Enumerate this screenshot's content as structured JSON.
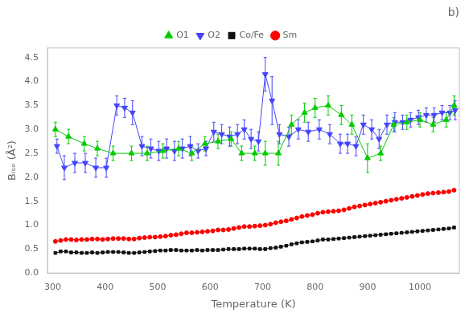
{
  "chart_data": {
    "type": "line",
    "title": "b)",
    "x_label": "Temperature (K)",
    "y_label": "Bᵢₛₒ (Å²)",
    "xlim": [
      290,
      1075
    ],
    "ylim": [
      0.0,
      4.7
    ],
    "xticks": [
      300,
      400,
      500,
      600,
      700,
      800,
      900,
      1000
    ],
    "yticks": [
      {
        "value": 0.0,
        "label": "0.0"
      },
      0.5,
      {
        "value": 1.0,
        "label": "1.0"
      },
      1.5,
      {
        "value": 2.0,
        "label": "2.0"
      },
      2.5,
      {
        "value": 3.0,
        "label": "3.0"
      },
      3.5,
      {
        "value": 4.0,
        "label": "4.0"
      },
      4.5
    ],
    "grid": false,
    "legend": "top",
    "series": [
      {
        "name": "O1",
        "color": "#00cc00",
        "marker": "triangle-up",
        "line_style": "solid",
        "x": [
          305,
          330,
          360,
          385,
          415,
          450,
          480,
          510,
          540,
          565,
          590,
          615,
          640,
          660,
          685,
          705,
          730,
          755,
          780,
          800,
          825,
          850,
          870,
          900,
          925,
          950,
          975,
          1000,
          1025,
          1050,
          1065
        ],
        "values": [
          3.0,
          2.85,
          2.7,
          2.6,
          2.5,
          2.5,
          2.5,
          2.55,
          2.6,
          2.5,
          2.7,
          2.75,
          2.8,
          2.5,
          2.5,
          2.5,
          2.5,
          3.1,
          3.35,
          3.45,
          3.5,
          3.3,
          3.1,
          2.4,
          2.5,
          3.1,
          3.15,
          3.2,
          3.1,
          3.2,
          3.5
        ],
        "yerr": [
          0.15,
          0.15,
          0.15,
          0.15,
          0.15,
          0.15,
          0.15,
          0.15,
          0.15,
          0.15,
          0.15,
          0.15,
          0.15,
          0.15,
          0.15,
          0.25,
          0.25,
          0.2,
          0.2,
          0.2,
          0.2,
          0.2,
          0.2,
          0.3,
          0.15,
          0.15,
          0.15,
          0.15,
          0.15,
          0.15,
          0.2
        ]
      },
      {
        "name": "O2",
        "color": "#4444ff",
        "marker": "triangle-down",
        "line_style": "solid",
        "x": [
          308,
          322,
          342,
          362,
          382,
          402,
          422,
          437,
          452,
          470,
          487,
          502,
          517,
          532,
          547,
          562,
          577,
          592,
          607,
          622,
          637,
          652,
          665,
          678,
          692,
          705,
          718,
          732,
          750,
          768,
          787,
          808,
          828,
          848,
          862,
          878,
          892,
          908,
          922,
          937,
          952,
          967,
          982,
          997,
          1012,
          1027,
          1042,
          1057,
          1067
        ],
        "values": [
          2.65,
          2.2,
          2.3,
          2.3,
          2.2,
          2.2,
          3.5,
          3.45,
          3.35,
          2.65,
          2.6,
          2.55,
          2.6,
          2.55,
          2.6,
          2.65,
          2.55,
          2.6,
          2.95,
          2.9,
          2.85,
          2.9,
          3.0,
          2.8,
          2.75,
          4.15,
          3.6,
          2.9,
          2.85,
          3.0,
          2.95,
          3.0,
          2.9,
          2.7,
          2.7,
          2.65,
          3.1,
          3.0,
          2.8,
          3.1,
          3.15,
          3.15,
          3.2,
          3.25,
          3.3,
          3.3,
          3.35,
          3.35,
          3.4
        ],
        "yerr": [
          0.15,
          0.25,
          0.2,
          0.2,
          0.2,
          0.2,
          0.2,
          0.2,
          0.25,
          0.2,
          0.2,
          0.2,
          0.2,
          0.2,
          0.2,
          0.2,
          0.15,
          0.15,
          0.2,
          0.2,
          0.2,
          0.2,
          0.2,
          0.2,
          0.2,
          0.35,
          0.5,
          0.2,
          0.2,
          0.2,
          0.2,
          0.2,
          0.2,
          0.2,
          0.2,
          0.2,
          0.2,
          0.2,
          0.2,
          0.2,
          0.2,
          0.15,
          0.15,
          0.15,
          0.15,
          0.15,
          0.15,
          0.15,
          0.2
        ]
      },
      {
        "name": "Co/Fe",
        "color": "#111111",
        "marker": "square",
        "line_style": "solid",
        "x": [
          305,
          315,
          325,
          335,
          345,
          355,
          365,
          375,
          385,
          395,
          405,
          415,
          425,
          435,
          445,
          455,
          465,
          475,
          485,
          495,
          505,
          515,
          525,
          535,
          545,
          555,
          565,
          575,
          585,
          595,
          605,
          615,
          625,
          635,
          645,
          655,
          665,
          675,
          685,
          695,
          705,
          715,
          725,
          735,
          745,
          755,
          765,
          775,
          785,
          795,
          805,
          815,
          825,
          835,
          845,
          855,
          865,
          875,
          885,
          895,
          905,
          915,
          925,
          935,
          945,
          955,
          965,
          975,
          985,
          995,
          1005,
          1015,
          1025,
          1035,
          1045,
          1055,
          1065
        ],
        "values": [
          0.42,
          0.45,
          0.45,
          0.43,
          0.43,
          0.42,
          0.42,
          0.43,
          0.42,
          0.43,
          0.44,
          0.44,
          0.44,
          0.43,
          0.42,
          0.42,
          0.43,
          0.44,
          0.45,
          0.46,
          0.47,
          0.47,
          0.48,
          0.48,
          0.47,
          0.47,
          0.47,
          0.48,
          0.47,
          0.48,
          0.48,
          0.48,
          0.49,
          0.5,
          0.5,
          0.5,
          0.51,
          0.51,
          0.51,
          0.5,
          0.5,
          0.52,
          0.53,
          0.55,
          0.57,
          0.6,
          0.62,
          0.64,
          0.65,
          0.66,
          0.68,
          0.7,
          0.7,
          0.71,
          0.72,
          0.73,
          0.74,
          0.75,
          0.76,
          0.77,
          0.78,
          0.79,
          0.8,
          0.81,
          0.82,
          0.83,
          0.84,
          0.85,
          0.86,
          0.87,
          0.88,
          0.89,
          0.9,
          0.91,
          0.92,
          0.93,
          0.95
        ]
      },
      {
        "name": "Sm",
        "color": "#ff0000",
        "marker": "circle",
        "line_style": "solid",
        "x": [
          305,
          315,
          325,
          335,
          345,
          355,
          365,
          375,
          385,
          395,
          405,
          415,
          425,
          435,
          445,
          455,
          465,
          475,
          485,
          495,
          505,
          515,
          525,
          535,
          545,
          555,
          565,
          575,
          585,
          595,
          605,
          615,
          625,
          635,
          645,
          655,
          665,
          675,
          685,
          695,
          705,
          715,
          725,
          735,
          745,
          755,
          765,
          775,
          785,
          795,
          805,
          815,
          825,
          835,
          845,
          855,
          865,
          875,
          885,
          895,
          905,
          915,
          925,
          935,
          945,
          955,
          965,
          975,
          985,
          995,
          1005,
          1015,
          1025,
          1035,
          1045,
          1055,
          1065
        ],
        "values": [
          0.66,
          0.68,
          0.7,
          0.7,
          0.69,
          0.7,
          0.7,
          0.71,
          0.71,
          0.7,
          0.71,
          0.72,
          0.72,
          0.72,
          0.71,
          0.71,
          0.73,
          0.74,
          0.75,
          0.75,
          0.76,
          0.77,
          0.79,
          0.8,
          0.82,
          0.84,
          0.84,
          0.85,
          0.86,
          0.87,
          0.88,
          0.9,
          0.9,
          0.91,
          0.93,
          0.95,
          0.97,
          0.97,
          0.98,
          0.99,
          1.0,
          1.02,
          1.05,
          1.07,
          1.09,
          1.12,
          1.15,
          1.18,
          1.2,
          1.22,
          1.25,
          1.27,
          1.28,
          1.29,
          1.3,
          1.32,
          1.35,
          1.38,
          1.4,
          1.42,
          1.44,
          1.46,
          1.48,
          1.5,
          1.52,
          1.54,
          1.56,
          1.58,
          1.6,
          1.62,
          1.64,
          1.66,
          1.67,
          1.68,
          1.69,
          1.7,
          1.73
        ]
      }
    ]
  }
}
